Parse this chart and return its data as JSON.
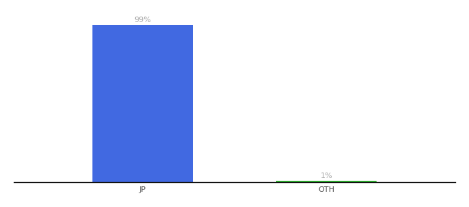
{
  "categories": [
    "JP",
    "OTH"
  ],
  "values": [
    99,
    1
  ],
  "bar_colors": [
    "#4169e1",
    "#2db52d"
  ],
  "labels": [
    "99%",
    "1%"
  ],
  "ylim": [
    0,
    108
  ],
  "background_color": "#ffffff",
  "label_color": "#aaaaaa",
  "label_fontsize": 8,
  "tick_fontsize": 8,
  "tick_color": "#555555",
  "bar_width": 0.55,
  "x_positions": [
    1,
    2
  ],
  "xlim": [
    0.3,
    2.7
  ]
}
